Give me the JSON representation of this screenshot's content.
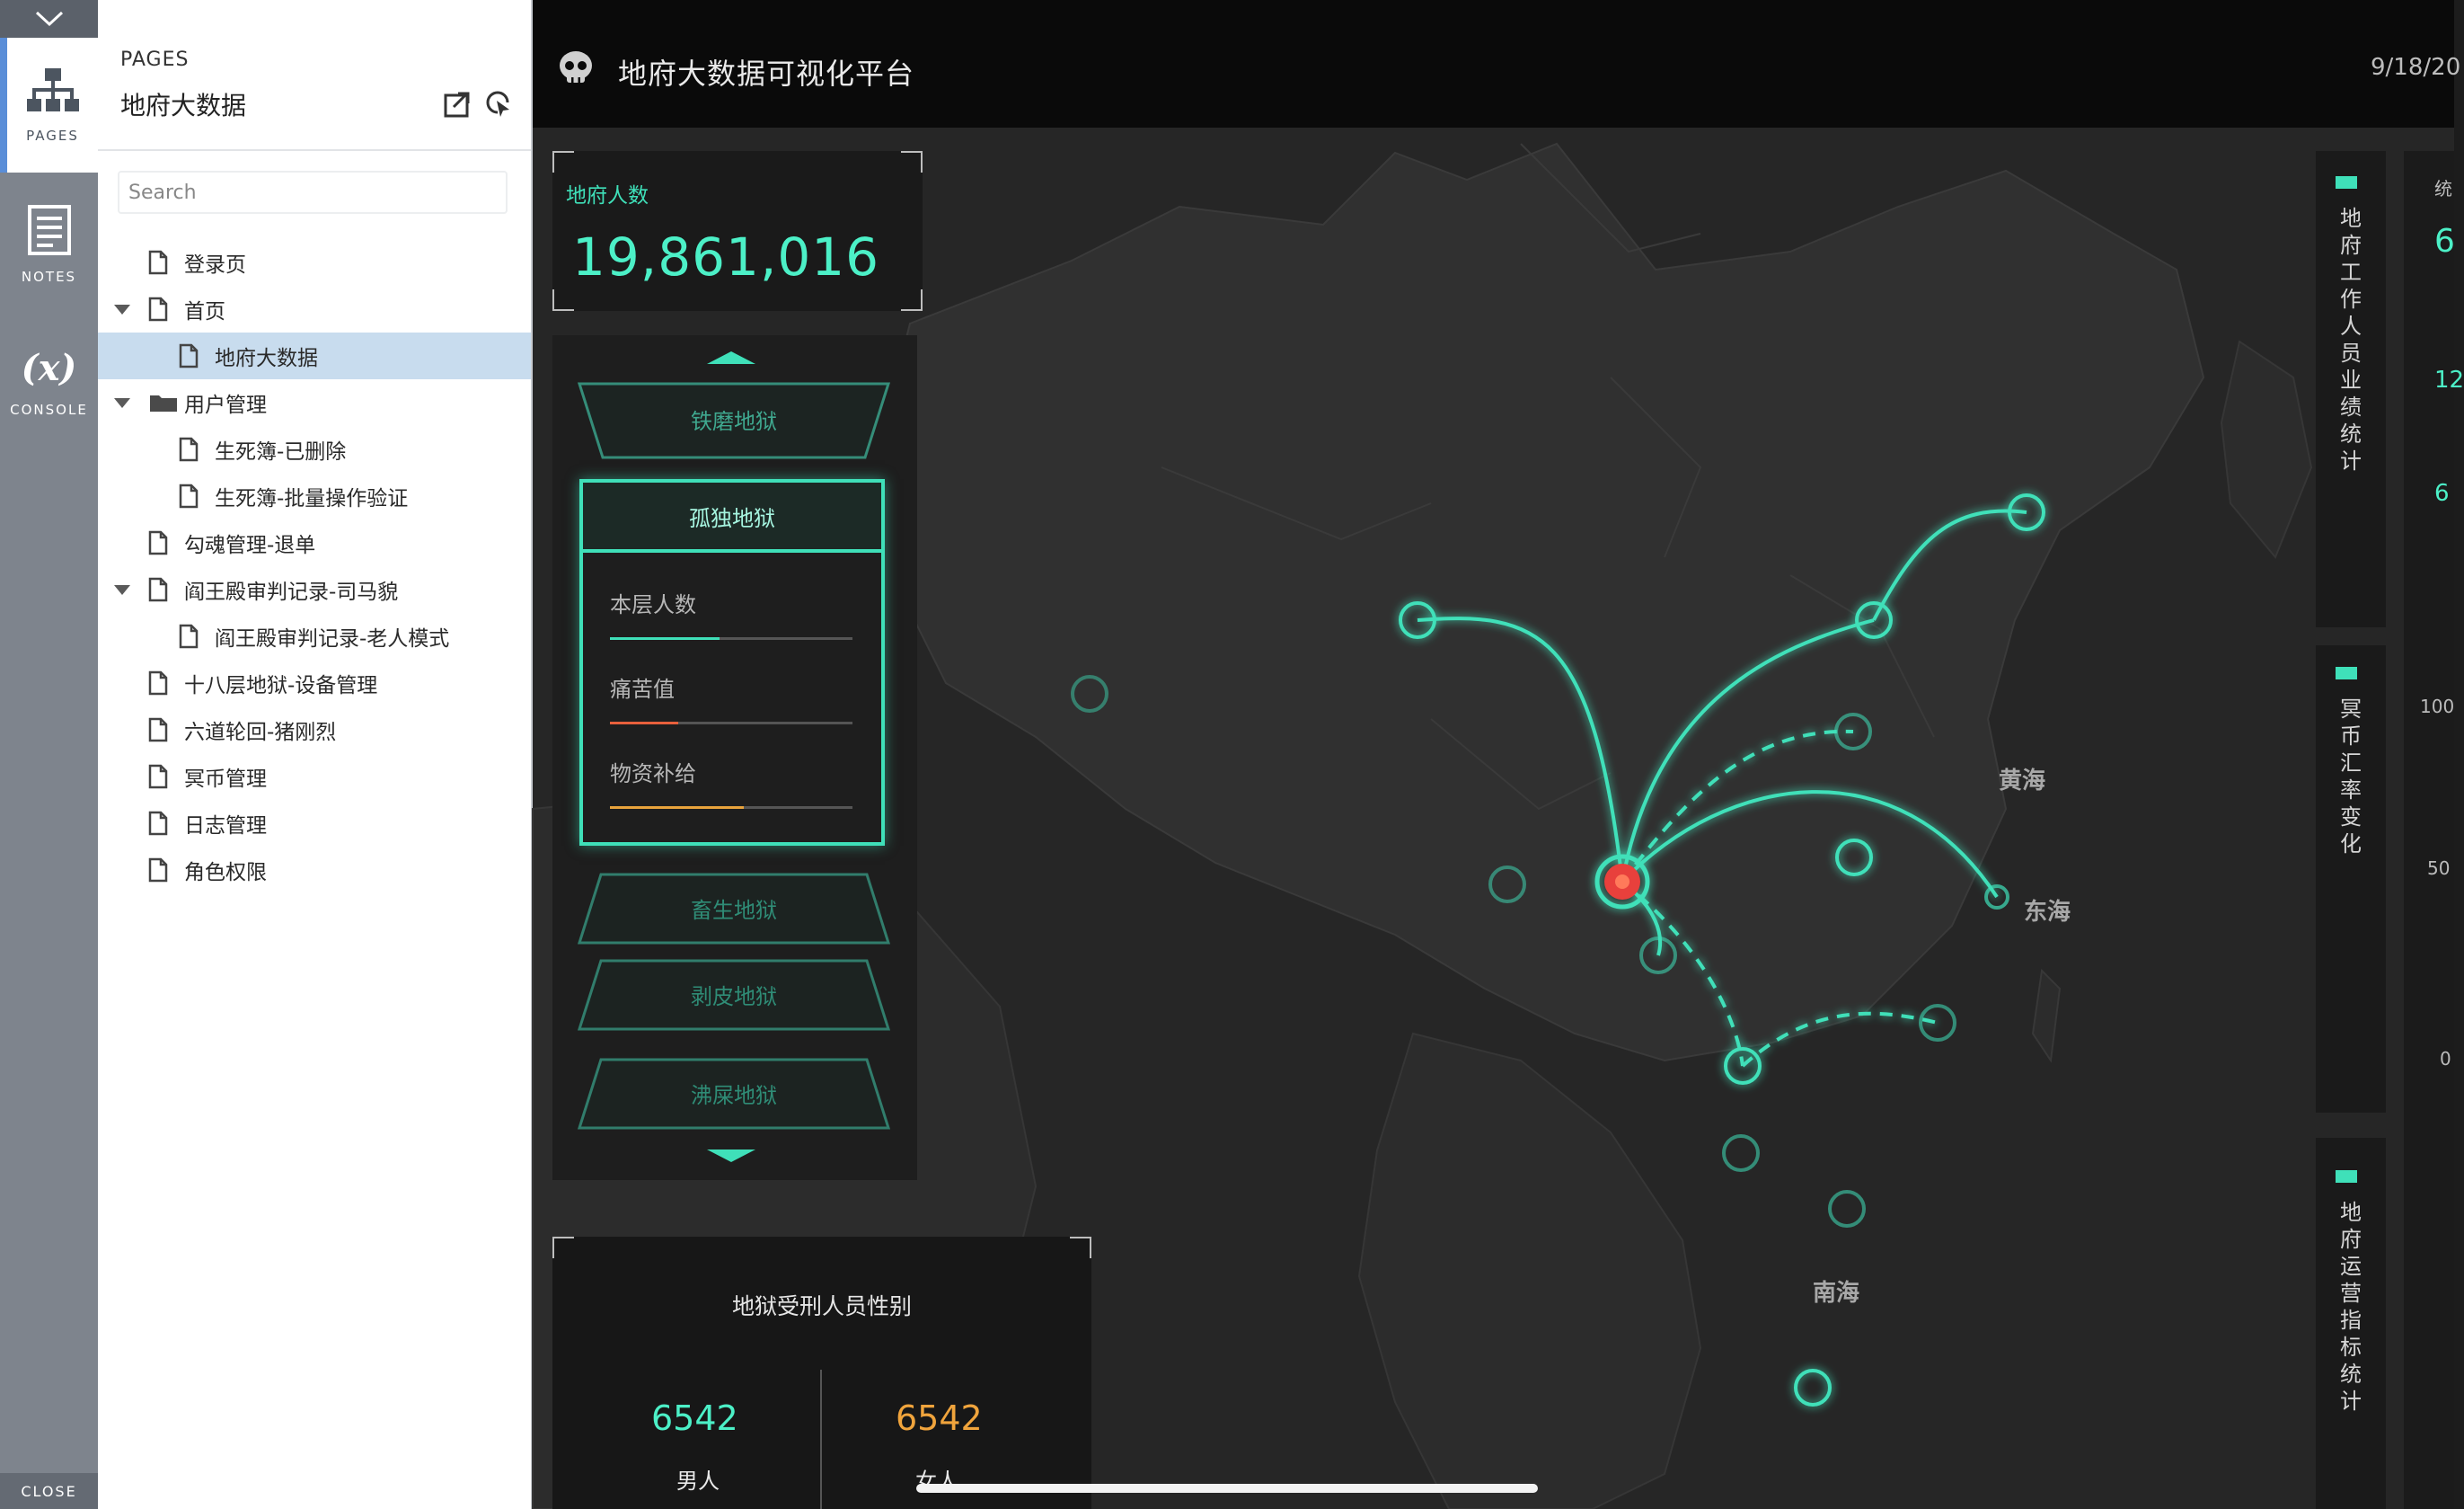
{
  "rail": {
    "tools": [
      {
        "label": "PAGES",
        "icon": "sitemap-icon",
        "active": true
      },
      {
        "label": "NOTES",
        "icon": "notes-icon",
        "active": false
      },
      {
        "label": "CONSOLE",
        "icon": "variable-icon",
        "active": false
      }
    ],
    "console_glyph": "(x)",
    "close_label": "CLOSE"
  },
  "pages": {
    "header": "PAGES",
    "current": "地府大数据",
    "search_placeholder": "Search",
    "tree": [
      {
        "label": "登录页",
        "level": 0,
        "type": "page",
        "expanded": null,
        "selected": false
      },
      {
        "label": "首页",
        "level": 0,
        "type": "page",
        "expanded": true,
        "selected": false
      },
      {
        "label": "地府大数据",
        "level": 1,
        "type": "page",
        "expanded": null,
        "selected": true
      },
      {
        "label": "用户管理",
        "level": 0,
        "type": "folder",
        "expanded": true,
        "selected": false
      },
      {
        "label": "生死簿-已删除",
        "level": 1,
        "type": "page",
        "expanded": null,
        "selected": false
      },
      {
        "label": "生死簿-批量操作验证",
        "level": 1,
        "type": "page",
        "expanded": null,
        "selected": false
      },
      {
        "label": "勾魂管理-退单",
        "level": 0,
        "type": "page",
        "expanded": null,
        "selected": false
      },
      {
        "label": "阎王殿审判记录-司马貌",
        "level": 0,
        "type": "page",
        "expanded": true,
        "selected": false
      },
      {
        "label": "阎王殿审判记录-老人模式",
        "level": 1,
        "type": "page",
        "expanded": null,
        "selected": false
      },
      {
        "label": "十八层地狱-设备管理",
        "level": 0,
        "type": "page",
        "expanded": null,
        "selected": false
      },
      {
        "label": "六道轮回-猪刚烈",
        "level": 0,
        "type": "page",
        "expanded": null,
        "selected": false
      },
      {
        "label": "冥币管理",
        "level": 0,
        "type": "page",
        "expanded": null,
        "selected": false
      },
      {
        "label": "日志管理",
        "level": 0,
        "type": "page",
        "expanded": null,
        "selected": false
      },
      {
        "label": "角色权限",
        "level": 0,
        "type": "page",
        "expanded": null,
        "selected": false
      }
    ]
  },
  "dashboard": {
    "logo_icon": "skull-icon",
    "title": "地府大数据可视化平台",
    "date": "9/18/20",
    "population": {
      "label": "地府人数",
      "value": "19,861,016"
    },
    "levels": {
      "items": [
        "铁磨地狱",
        "孤独地狱",
        "畜生地狱",
        "剥皮地狱",
        "沸屎地狱"
      ],
      "active": "孤独地狱",
      "stats": [
        {
          "label": "本层人数",
          "fill": 0.45,
          "color": "#3fe0b9"
        },
        {
          "label": "痛苦值",
          "fill": 0.28,
          "color": "#e8603c"
        },
        {
          "label": "物资补给",
          "fill": 0.55,
          "color": "#e8a33c"
        }
      ]
    },
    "gender": {
      "title": "地狱受刑人员性别",
      "male": {
        "value": "6542",
        "label": "男人",
        "color": "#4cf0c7"
      },
      "female": {
        "value": "6542",
        "label": "女人",
        "color": "#f0a43c"
      }
    },
    "map_labels": [
      "黄海",
      "东海",
      "南海"
    ],
    "right_titles": [
      "地府工作人员业绩统计",
      "冥币汇率变化",
      "地府运营指标统计"
    ],
    "right_edge": {
      "numbers": [
        "6",
        "12",
        "6"
      ],
      "axis": [
        "100",
        "50",
        "0"
      ],
      "partial_title": "统"
    },
    "colors": {
      "accent": "#3fe0b9",
      "hub": "#e8403c"
    }
  }
}
